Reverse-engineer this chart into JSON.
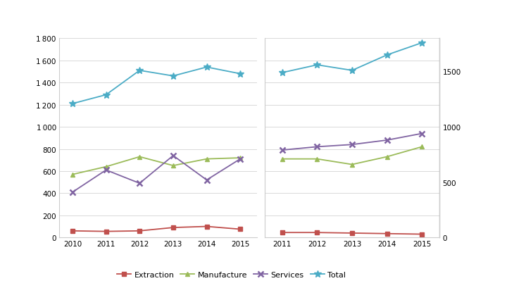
{
  "left": {
    "years": [
      2010,
      2011,
      2012,
      2013,
      2014,
      2015
    ],
    "extraction": [
      60,
      55,
      60,
      90,
      100,
      75
    ],
    "manufacture": [
      570,
      640,
      730,
      650,
      710,
      720
    ],
    "services": [
      410,
      610,
      490,
      740,
      520,
      710
    ],
    "total": [
      1210,
      1290,
      1510,
      1460,
      1540,
      1480
    ],
    "ylim": [
      0,
      1800
    ],
    "yticks": [
      0,
      200,
      400,
      600,
      800,
      1000,
      1200,
      1400,
      1600,
      1800
    ]
  },
  "right": {
    "years": [
      2011,
      2012,
      2013,
      2014,
      2015
    ],
    "extraction": [
      45,
      45,
      40,
      35,
      30
    ],
    "manufacture": [
      710,
      710,
      660,
      730,
      820
    ],
    "services": [
      790,
      820,
      840,
      880,
      940
    ],
    "total": [
      1490,
      1560,
      1510,
      1650,
      1760
    ],
    "ylim": [
      0,
      1800
    ],
    "yticks_right": [
      0,
      500,
      1000,
      1500
    ]
  },
  "colors": {
    "extraction": "#c0504d",
    "manufacture": "#9bbb59",
    "services": "#8064a2",
    "total": "#4bacc6"
  },
  "legend_labels": [
    "Extraction",
    "Manufacture",
    "Services",
    "Total"
  ],
  "background": "#ffffff"
}
